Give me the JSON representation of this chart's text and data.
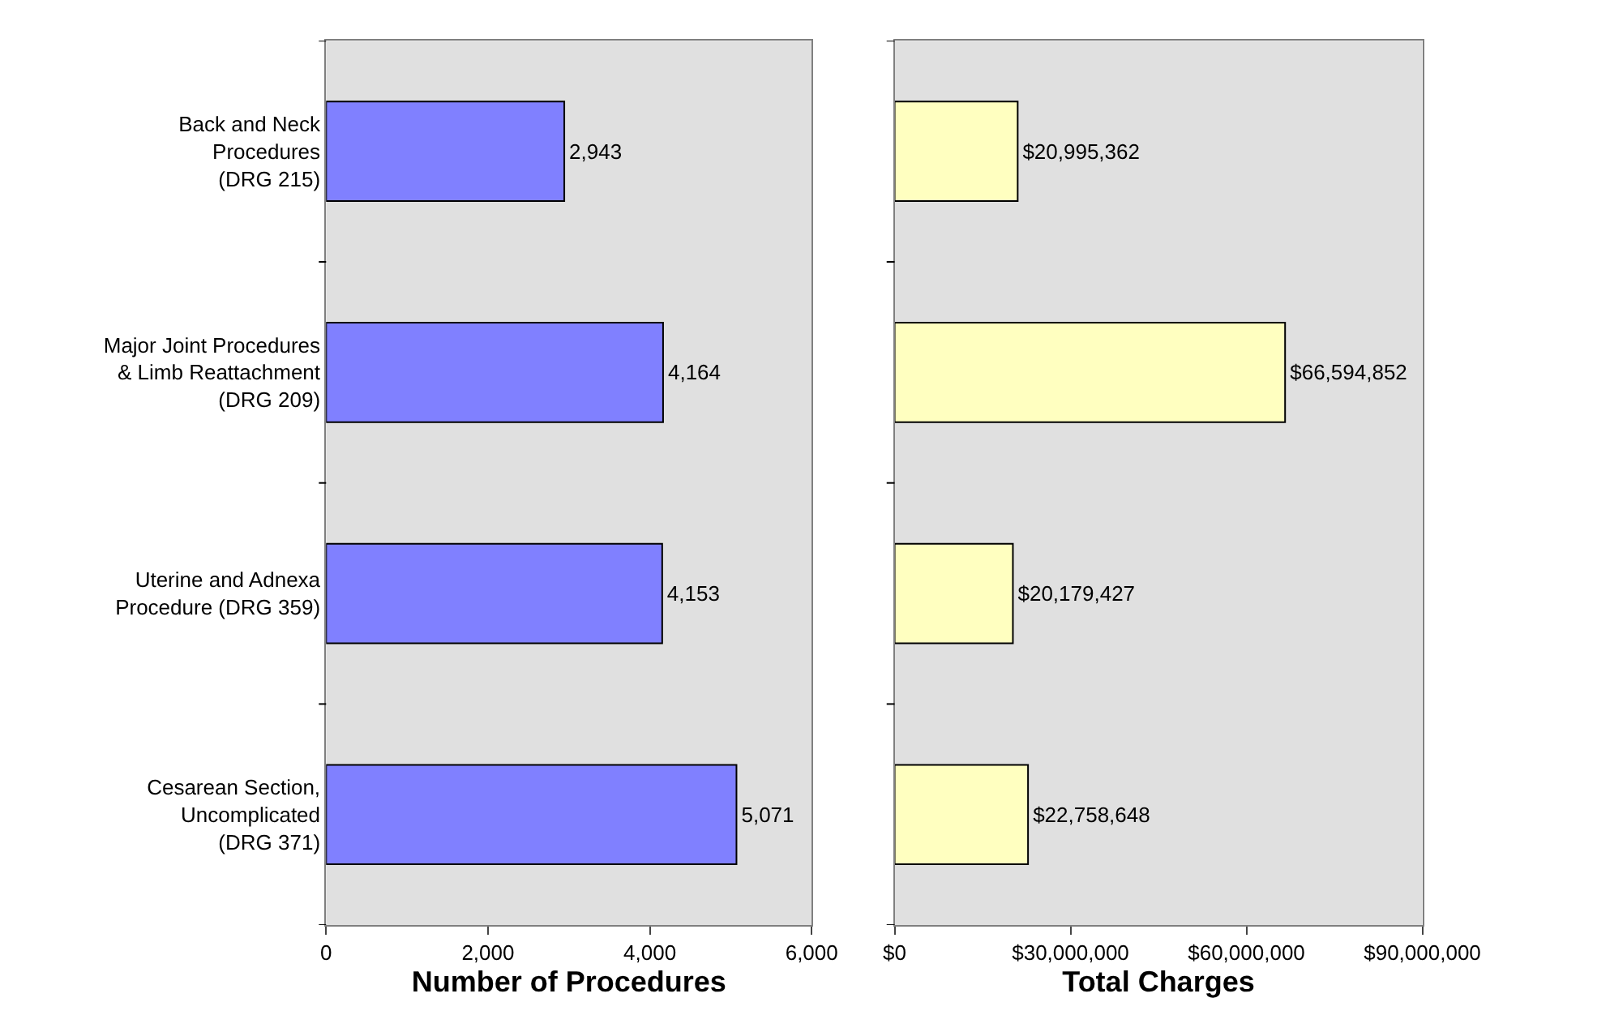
{
  "chart_data": [
    {
      "type": "bar",
      "orientation": "horizontal",
      "xlabel": "Number of Procedures",
      "categories": [
        "Back and Neck\nProcedures\n(DRG 215)",
        "Major Joint Procedures\n& Limb Reattachment\n(DRG 209)",
        "Uterine and Adnexa\nProcedure (DRG 359)",
        "Cesarean Section,\nUncomplicated\n(DRG 371)"
      ],
      "values": [
        2943,
        4164,
        4153,
        5071
      ],
      "color": "#8080ff",
      "value_labels": [
        "2,943",
        "4,164",
        "4,153",
        "5,071"
      ],
      "xlim": [
        0,
        6000
      ],
      "xticks": [
        {
          "value": 0,
          "label": "0"
        },
        {
          "value": 2000,
          "label": "2,000"
        },
        {
          "value": 4000,
          "label": "4,000"
        },
        {
          "value": 6000,
          "label": "6,000"
        }
      ]
    },
    {
      "type": "bar",
      "orientation": "horizontal",
      "xlabel": "Total Charges",
      "categories": [
        null,
        null,
        null,
        null
      ],
      "values": [
        20995362,
        66594852,
        20179427,
        22758648
      ],
      "color": "#ffffc0",
      "value_labels": [
        "$20,995,362",
        "$66,594,852",
        "$20,179,427",
        "$22,758,648"
      ],
      "xlim": [
        0,
        90000000
      ],
      "xticks": [
        {
          "value": 0,
          "label": "$0"
        },
        {
          "value": 30000000,
          "label": "$30,000,000"
        },
        {
          "value": 60000000,
          "label": "$60,000,000"
        },
        {
          "value": 90000000,
          "label": "$90,000,000"
        }
      ],
      "tick_labels": "x"
    }
  ]
}
